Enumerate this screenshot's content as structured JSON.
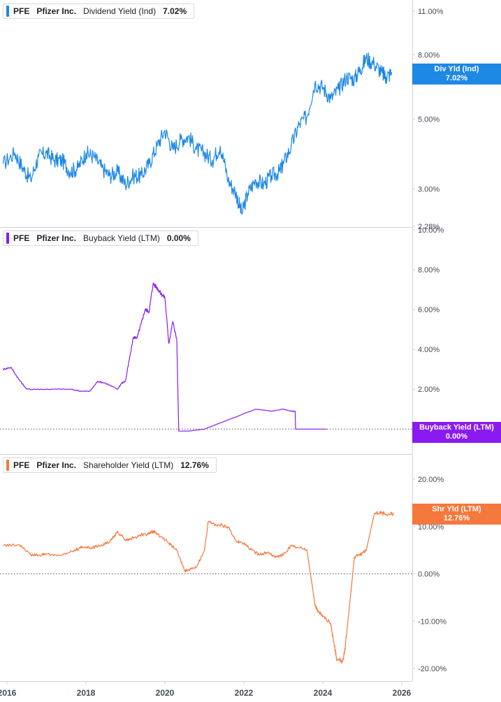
{
  "colors": {
    "dividend": "#1e88e5",
    "buyback": "#8a1bf0",
    "shareholder": "#f5783c",
    "grid": "#cfd3d8",
    "axis_text": "#444b55"
  },
  "x_axis": {
    "ticks": [
      {
        "year": 2016,
        "label": "2016"
      },
      {
        "year": 2018,
        "label": "2018"
      },
      {
        "year": 2020,
        "label": "2020"
      },
      {
        "year": 2022,
        "label": "2022"
      },
      {
        "year": 2024,
        "label": "2024"
      },
      {
        "year": 2026,
        "label": "2026"
      }
    ]
  },
  "panels": [
    {
      "key": "dividend",
      "legend": {
        "ticker": "PFE",
        "company": "Pfizer Inc.",
        "metric": "Dividend Yield (Ind)",
        "value": "7.02%"
      },
      "badge": {
        "label": "Div Yld (Ind)",
        "value": "7.02%"
      },
      "y_ticks": [
        "11.00%",
        "8.00%",
        "5.00%",
        "3.00%",
        "2.28%"
      ]
    },
    {
      "key": "buyback",
      "legend": {
        "ticker": "PFE",
        "company": "Pfizer Inc.",
        "metric": "Buyback Yield (LTM)",
        "value": "0.00%"
      },
      "badge": {
        "label": "Buyback Yield (LTM)",
        "value": "0.00%"
      },
      "y_ticks": [
        "10.00%",
        "8.00%",
        "6.00%",
        "4.00%",
        "2.00%"
      ]
    },
    {
      "key": "shareholder",
      "legend": {
        "ticker": "PFE",
        "company": "Pfizer Inc.",
        "metric": "Shareholder Yield (LTM)",
        "value": "12.76%"
      },
      "badge": {
        "label": "Shr Yld (LTM)",
        "value": "12.76%"
      },
      "y_ticks": [
        "20.00%",
        "10.00%",
        "0.00%",
        "-10.00%",
        "-20.00%"
      ]
    }
  ],
  "chart_data": [
    {
      "type": "line",
      "title": "Dividend Yield (Ind)",
      "scale": "log",
      "ylim": [
        2.28,
        11.0
      ],
      "y_ticks": [
        11.0,
        8.0,
        5.0,
        3.0,
        2.28
      ],
      "xlim": [
        2016.0,
        2026.0
      ],
      "series": [
        {
          "name": "PFE Dividend Yield (Ind)",
          "x": [
            2015.9,
            2016.2,
            2016.4,
            2016.6,
            2016.8,
            2017.0,
            2017.2,
            2017.4,
            2017.6,
            2017.8,
            2018.0,
            2018.2,
            2018.4,
            2018.6,
            2018.8,
            2019.0,
            2019.2,
            2019.4,
            2019.6,
            2019.8,
            2020.0,
            2020.2,
            2020.4,
            2020.6,
            2020.8,
            2021.0,
            2021.2,
            2021.4,
            2021.6,
            2021.8,
            2021.95,
            2022.1,
            2022.3,
            2022.5,
            2022.7,
            2022.9,
            2023.0,
            2023.2,
            2023.4,
            2023.6,
            2023.8,
            2024.0,
            2024.2,
            2024.4,
            2024.6,
            2024.8,
            2024.95,
            2025.1,
            2025.3,
            2025.5,
            2025.6,
            2025.75
          ],
          "y": [
            3.6,
            3.9,
            3.5,
            3.2,
            3.8,
            3.9,
            3.7,
            3.7,
            3.4,
            3.5,
            3.9,
            3.8,
            3.5,
            3.3,
            3.4,
            3.1,
            3.3,
            3.3,
            3.6,
            4.1,
            4.6,
            4.0,
            4.3,
            4.4,
            4.0,
            3.9,
            3.7,
            4.1,
            3.2,
            2.9,
            2.5,
            2.9,
            3.2,
            3.1,
            3.3,
            3.4,
            3.6,
            4.1,
            4.8,
            5.1,
            6.5,
            6.3,
            5.8,
            6.2,
            6.8,
            6.7,
            7.2,
            7.8,
            7.5,
            7.0,
            6.8,
            7.02
          ]
        }
      ]
    },
    {
      "type": "line",
      "title": "Buyback Yield (LTM)",
      "ylim": [
        -0.2,
        10.0
      ],
      "y_ticks": [
        10.0,
        8.0,
        6.0,
        4.0,
        2.0
      ],
      "baseline": 0.0,
      "xlim": [
        2016.0,
        2026.0
      ],
      "series": [
        {
          "name": "PFE Buyback Yield (LTM)",
          "x": [
            2015.9,
            2016.1,
            2016.3,
            2016.5,
            2016.8,
            2017.2,
            2017.6,
            2017.9,
            2018.1,
            2018.3,
            2018.5,
            2018.8,
            2018.9,
            2019.0,
            2019.2,
            2019.3,
            2019.4,
            2019.5,
            2019.6,
            2019.7,
            2019.8,
            2019.9,
            2020.0,
            2020.1,
            2020.2,
            2020.3,
            2020.35,
            2020.6,
            2021.0,
            2022.3,
            2022.7,
            2023.0,
            2023.2,
            2023.3,
            2023.31,
            2024.1
          ],
          "y": [
            3.0,
            3.1,
            2.5,
            2.0,
            2.0,
            2.0,
            2.0,
            1.9,
            1.9,
            2.4,
            2.3,
            2.0,
            2.3,
            2.4,
            4.6,
            4.6,
            5.3,
            6.0,
            5.9,
            7.3,
            7.1,
            6.8,
            6.6,
            4.3,
            5.4,
            4.5,
            -0.1,
            -0.1,
            0.0,
            1.0,
            0.9,
            1.0,
            0.9,
            0.9,
            0.0,
            0.0
          ]
        }
      ]
    },
    {
      "type": "line",
      "title": "Shareholder Yield (LTM)",
      "ylim": [
        -20.0,
        20.0
      ],
      "y_ticks": [
        20.0,
        10.0,
        0.0,
        -10.0,
        -20.0
      ],
      "baseline": 0.0,
      "xlim": [
        2016.0,
        2026.0
      ],
      "series": [
        {
          "name": "PFE Shareholder Yield (LTM)",
          "x": [
            2015.9,
            2016.3,
            2016.6,
            2016.8,
            2017.0,
            2017.4,
            2017.7,
            2017.9,
            2018.1,
            2018.3,
            2018.6,
            2018.8,
            2019.0,
            2019.2,
            2019.4,
            2019.6,
            2019.7,
            2019.8,
            2020.1,
            2020.3,
            2020.5,
            2020.6,
            2020.8,
            2021.0,
            2021.1,
            2021.3,
            2021.6,
            2021.8,
            2022.0,
            2022.2,
            2022.4,
            2022.6,
            2022.8,
            2023.0,
            2023.2,
            2023.4,
            2023.6,
            2023.8,
            2023.85,
            2024.0,
            2024.2,
            2024.3,
            2024.35,
            2024.5,
            2024.55,
            2024.6,
            2024.8,
            2024.95,
            2025.1,
            2025.3,
            2025.5,
            2025.6,
            2025.8
          ],
          "y": [
            6.0,
            6.2,
            4.0,
            4.0,
            4.2,
            4.0,
            5.0,
            5.5,
            5.5,
            5.8,
            6.7,
            9.0,
            7.0,
            7.5,
            8.2,
            8.4,
            9.0,
            8.5,
            6.5,
            5.0,
            0.7,
            0.8,
            1.5,
            5.0,
            11.0,
            10.4,
            10.0,
            7.0,
            6.4,
            5.0,
            4.0,
            4.5,
            3.5,
            4.0,
            6.0,
            5.5,
            5.0,
            -6.5,
            -7.5,
            -9.0,
            -10.5,
            -15.5,
            -18.0,
            -18.5,
            -16.5,
            -13.0,
            3.5,
            4.0,
            5.0,
            12.5,
            13.0,
            12.5,
            12.76
          ]
        }
      ]
    }
  ]
}
